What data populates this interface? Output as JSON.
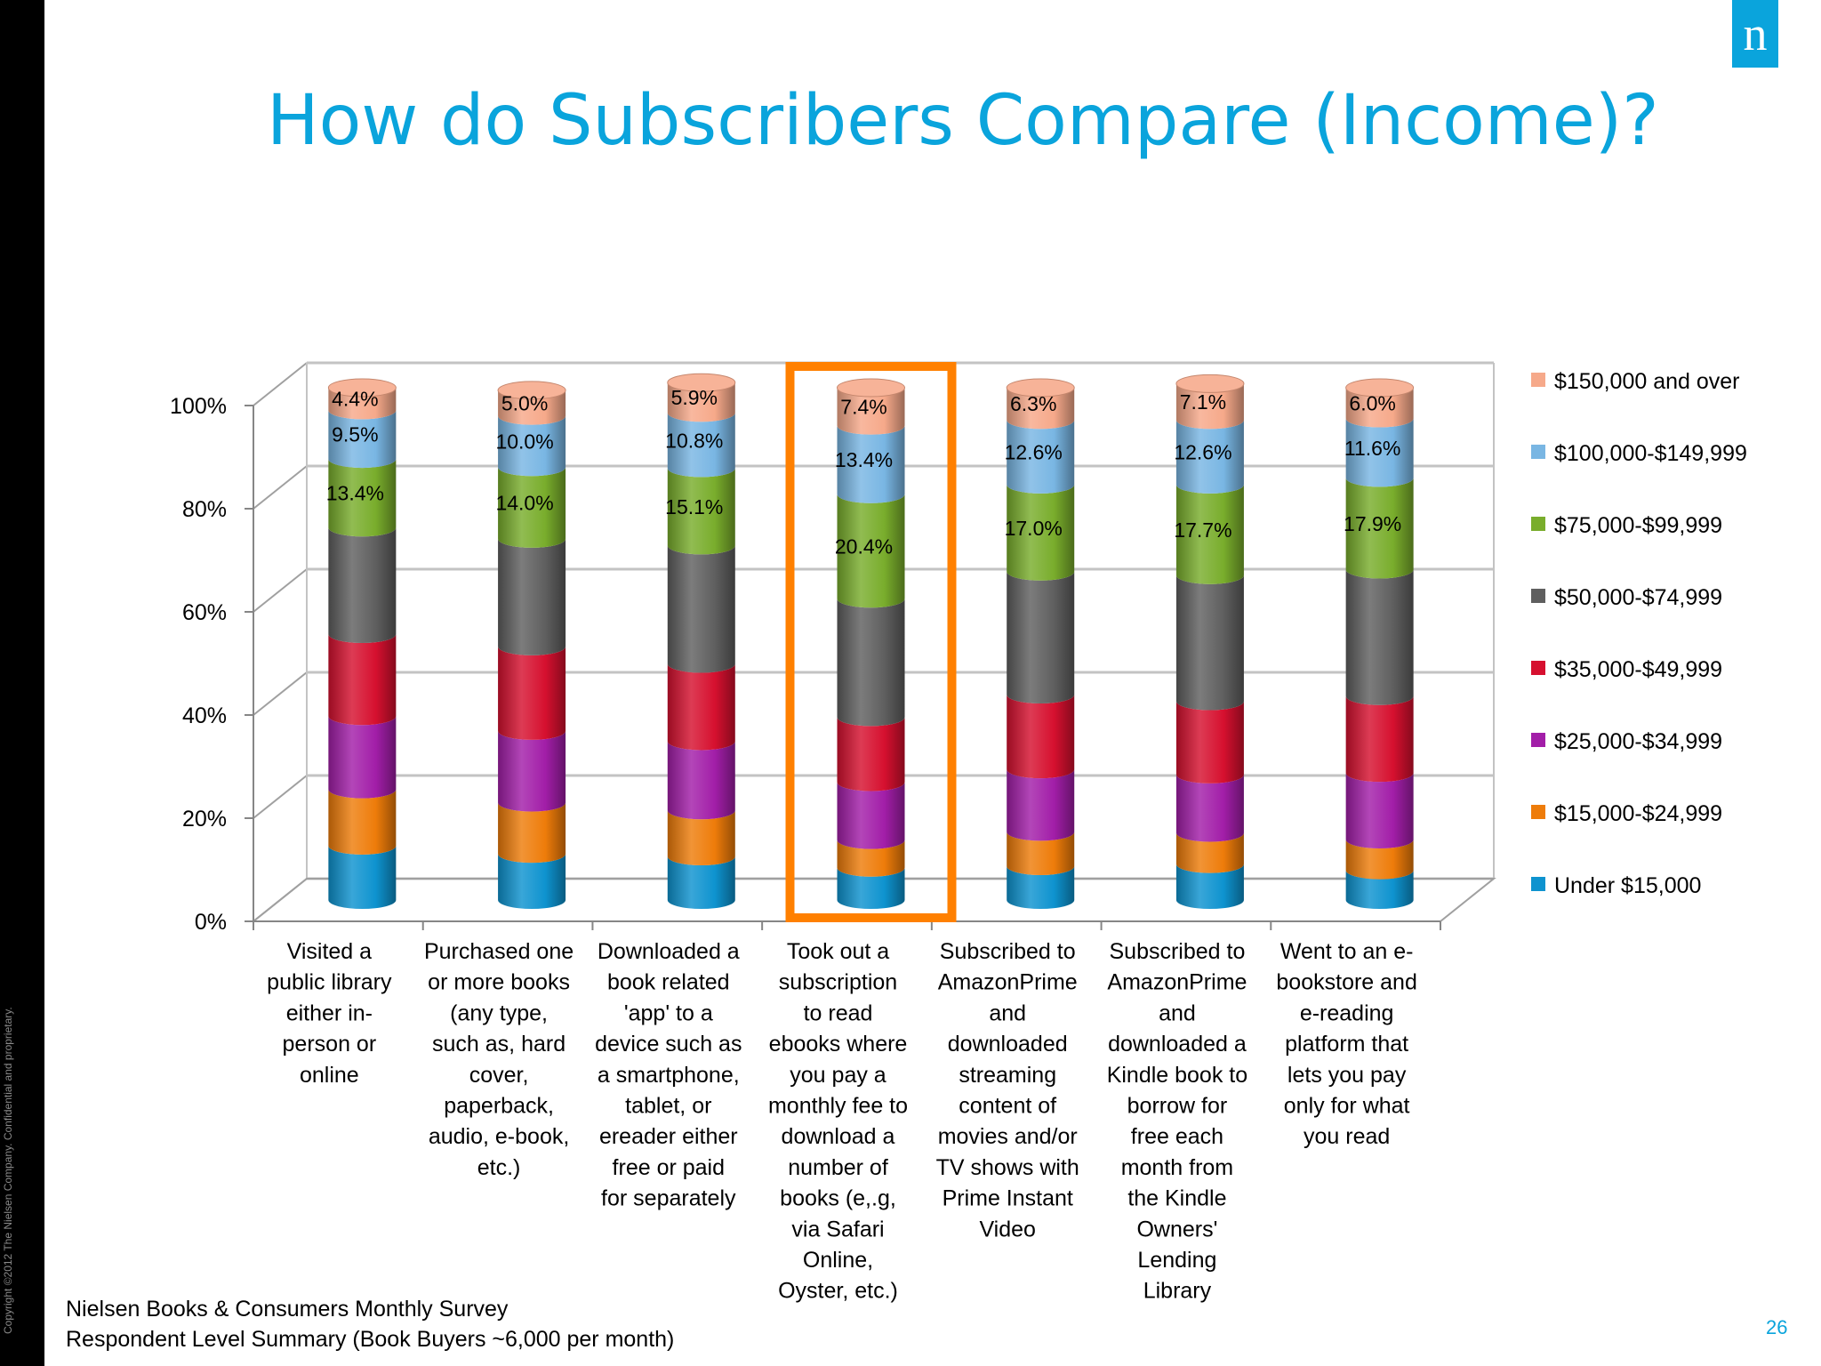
{
  "slide": {
    "title": "How do Subscribers Compare (Income)?",
    "copyright": "Copyright ©2012 The Nielsen Company. Confidential and proprietary.",
    "logo_letter": "n",
    "source_line_1": "Nielsen Books & Consumers Monthly Survey",
    "source_line_2": "Respondent Level Summary (Book Buyers ~6,000 per month)",
    "page_number": "26",
    "colors": {
      "title": "#0aa4dc",
      "logo": "#0aa4dc",
      "highlight": "#ff8000"
    }
  },
  "chart_data": {
    "type": "bar",
    "stacked": true,
    "percent_stacked": true,
    "three_d": true,
    "y_ticks": [
      "0%",
      "20%",
      "40%",
      "60%",
      "80%",
      "100%"
    ],
    "ylim": [
      0,
      100
    ],
    "grid": true,
    "legend_position": "right",
    "highlighted_category": 3,
    "categories": [
      [
        "Visited a",
        "public library",
        "either in-",
        "person or",
        "online"
      ],
      [
        "Purchased one",
        "or more books",
        "(any type,",
        "such as, hard",
        "cover,",
        "paperback,",
        "audio, e-book,",
        "etc.)"
      ],
      [
        "Downloaded a",
        "book related",
        "'app' to a",
        "device such as",
        "a smartphone,",
        "tablet, or",
        "ereader either",
        "free or paid",
        "for separately"
      ],
      [
        "Took out a",
        "subscription",
        "to read",
        "ebooks where",
        "you pay a",
        "monthly fee to",
        "download a",
        "number of",
        "books (e,.g,",
        "via Safari",
        "Online,",
        "Oyster, etc.)"
      ],
      [
        "Subscribed to",
        "AmazonPrime",
        "and",
        "downloaded",
        "streaming",
        "content of",
        "movies and/or",
        "TV shows with",
        "Prime Instant",
        "Video"
      ],
      [
        "Subscribed to",
        "AmazonPrime",
        "and",
        "downloaded a",
        "Kindle book to",
        "borrow for",
        "free each",
        "month from",
        "the Kindle",
        "Owners'",
        "Lending",
        "Library"
      ],
      [
        "Went to an e-",
        "bookstore and",
        "e-reading",
        "platform that",
        "lets you pay",
        "only for what",
        "you read"
      ]
    ],
    "series": [
      {
        "name": "Under $15,000",
        "color": "#0e93cf",
        "values": [
          10.6,
          9.0,
          8.5,
          6.3,
          6.6,
          7.0,
          5.8
        ]
      },
      {
        "name": "$15,000-$24,999",
        "color": "#ee7c0a",
        "values": [
          11.0,
          10.0,
          9.0,
          5.4,
          6.7,
          6.1,
          6.0
        ]
      },
      {
        "name": "$25,000-$34,999",
        "color": "#a21ea8",
        "values": [
          14.3,
          14.0,
          13.5,
          11.3,
          12.2,
          11.4,
          13.0
        ]
      },
      {
        "name": "$35,000-$49,999",
        "color": "#d6102f",
        "values": [
          16.0,
          16.5,
          15.1,
          12.7,
          14.6,
          14.3,
          15.0
        ]
      },
      {
        "name": "$50,000-$74,999",
        "color": "#5f5f5f",
        "values": [
          20.8,
          21.0,
          23.1,
          23.1,
          24.0,
          24.6,
          24.7
        ]
      },
      {
        "name": "$75,000-$99,999",
        "color": "#79ad2c",
        "values": [
          13.4,
          14.0,
          15.1,
          20.4,
          17.0,
          17.7,
          17.9
        ]
      },
      {
        "name": "$100,000-$149,999",
        "color": "#79b6e3",
        "values": [
          9.5,
          10.0,
          10.8,
          13.4,
          12.6,
          12.6,
          11.6
        ]
      },
      {
        "name": "$150,000 and over",
        "color": "#f6a98a",
        "values": [
          4.4,
          5.0,
          5.9,
          7.4,
          6.3,
          7.1,
          6.0
        ]
      }
    ],
    "data_labels": {
      "$150,000 and over": [
        "4.4%",
        "5.0%",
        "5.9%",
        "7.4%",
        "6.3%",
        "7.1%",
        "6.0%"
      ],
      "$100,000-$149,999": [
        "9.5%",
        "10.0%",
        "10.8%",
        "13.4%",
        "12.6%",
        "12.6%",
        "11.6%"
      ],
      "$75,000-$99,999": [
        "13.4%",
        "14.0%",
        "15.1%",
        "20.4%",
        "17.0%",
        "17.7%",
        "17.9%"
      ]
    }
  }
}
